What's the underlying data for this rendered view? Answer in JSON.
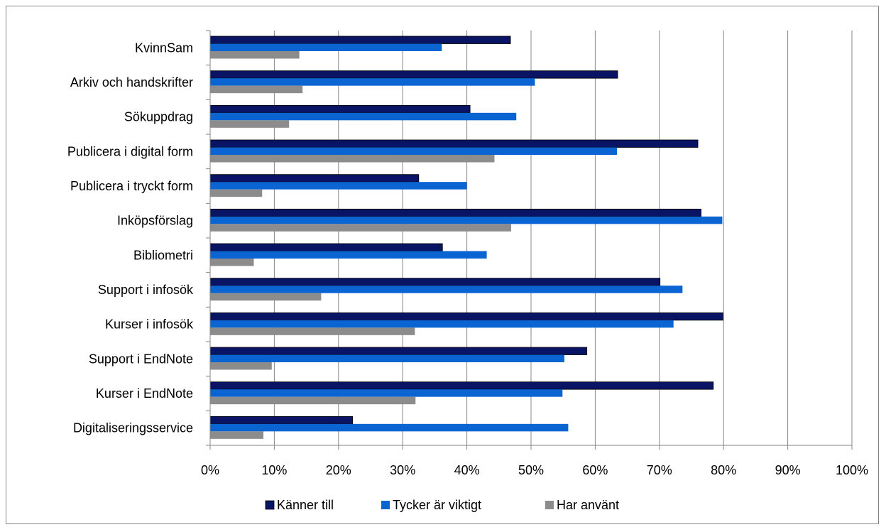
{
  "chart_data": {
    "type": "bar",
    "orientation": "horizontal",
    "categories": [
      "KvinnSam",
      "Arkiv och handskrifter",
      "Sökuppdrag",
      "Publicera i digital form",
      "Publicera i tryckt form",
      "Inköpsförslag",
      "Bibliometri",
      "Support i infosök",
      "Kurser i infosök",
      "Support i EndNote",
      "Kurser i EndNote",
      "Digitaliseringsservice"
    ],
    "series": [
      {
        "name": "Känner till",
        "color": "#0A1464",
        "values": [
          46.8,
          63.5,
          40.5,
          76.0,
          32.5,
          76.5,
          36.2,
          70.1,
          79.9,
          58.7,
          78.4,
          22.2
        ]
      },
      {
        "name": "Tycker är viktigt",
        "color": "#0A64D2",
        "values": [
          36.1,
          50.6,
          47.7,
          63.4,
          40.0,
          79.8,
          43.1,
          73.6,
          72.2,
          55.2,
          54.9,
          55.8
        ]
      },
      {
        "name": "Har använt",
        "color": "#8C8C8C",
        "values": [
          13.9,
          14.4,
          12.3,
          44.3,
          8.1,
          46.9,
          6.8,
          17.3,
          31.9,
          9.6,
          32.0,
          8.3
        ]
      }
    ],
    "x_ticks": [
      "0%",
      "10%",
      "20%",
      "30%",
      "40%",
      "50%",
      "60%",
      "70%",
      "80%",
      "90%",
      "100%"
    ],
    "xlim": [
      0,
      100
    ],
    "grid": "vertical",
    "legend_position": "bottom",
    "title": "",
    "xlabel": "",
    "ylabel": ""
  }
}
